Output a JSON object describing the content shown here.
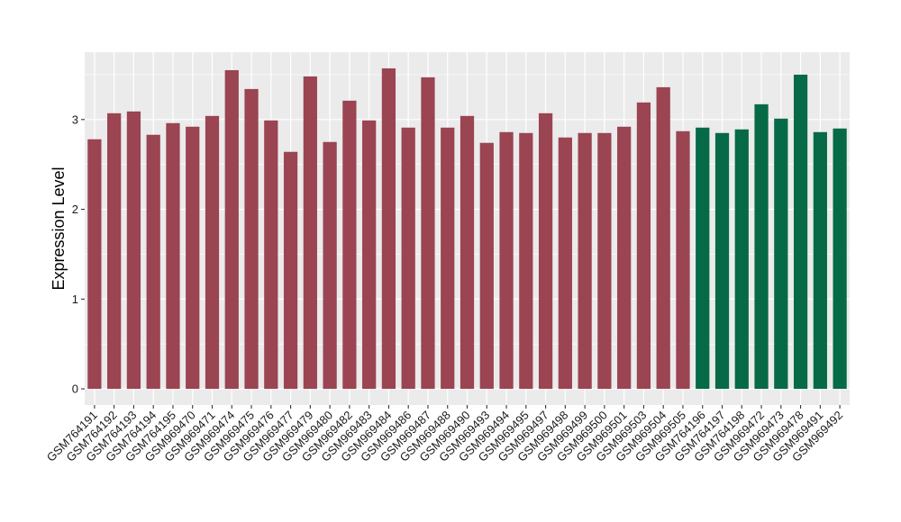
{
  "chart_data": {
    "type": "bar",
    "ylabel": "Expression Level",
    "xlabel": "",
    "ylim": [
      -0.18,
      3.75
    ],
    "yticks": [
      0,
      1,
      2,
      3
    ],
    "grid": true,
    "colors": {
      "group_a": "#9b4452",
      "group_b": "#066a47",
      "panel": "#ebebeb",
      "grid": "#ffffff"
    },
    "categories": [
      "GSM764191",
      "GSM764192",
      "GSM764193",
      "GSM764194",
      "GSM764195",
      "GSM969470",
      "GSM969471",
      "GSM969474",
      "GSM969475",
      "GSM969476",
      "GSM969477",
      "GSM969479",
      "GSM969480",
      "GSM969482",
      "GSM969483",
      "GSM969484",
      "GSM969486",
      "GSM969487",
      "GSM969488",
      "GSM969490",
      "GSM969493",
      "GSM969494",
      "GSM969495",
      "GSM969497",
      "GSM969498",
      "GSM969499",
      "GSM969500",
      "GSM969501",
      "GSM969503",
      "GSM969504",
      "GSM969505",
      "GSM764196",
      "GSM764197",
      "GSM764198",
      "GSM969472",
      "GSM969473",
      "GSM969478",
      "GSM969491",
      "GSM969492"
    ],
    "values": [
      2.78,
      3.07,
      3.09,
      2.83,
      2.96,
      2.92,
      3.04,
      3.55,
      3.34,
      2.99,
      2.64,
      3.48,
      2.75,
      3.21,
      2.99,
      3.57,
      2.91,
      3.47,
      2.91,
      3.04,
      2.74,
      2.86,
      2.85,
      3.07,
      2.8,
      2.85,
      2.85,
      2.92,
      3.19,
      3.36,
      2.87,
      2.91,
      2.85,
      2.89,
      3.17,
      3.01,
      3.5,
      2.86,
      2.9
    ],
    "groups": [
      "a",
      "a",
      "a",
      "a",
      "a",
      "a",
      "a",
      "a",
      "a",
      "a",
      "a",
      "a",
      "a",
      "a",
      "a",
      "a",
      "a",
      "a",
      "a",
      "a",
      "a",
      "a",
      "a",
      "a",
      "a",
      "a",
      "a",
      "a",
      "a",
      "a",
      "a",
      "b",
      "b",
      "b",
      "b",
      "b",
      "b",
      "b",
      "b"
    ]
  }
}
